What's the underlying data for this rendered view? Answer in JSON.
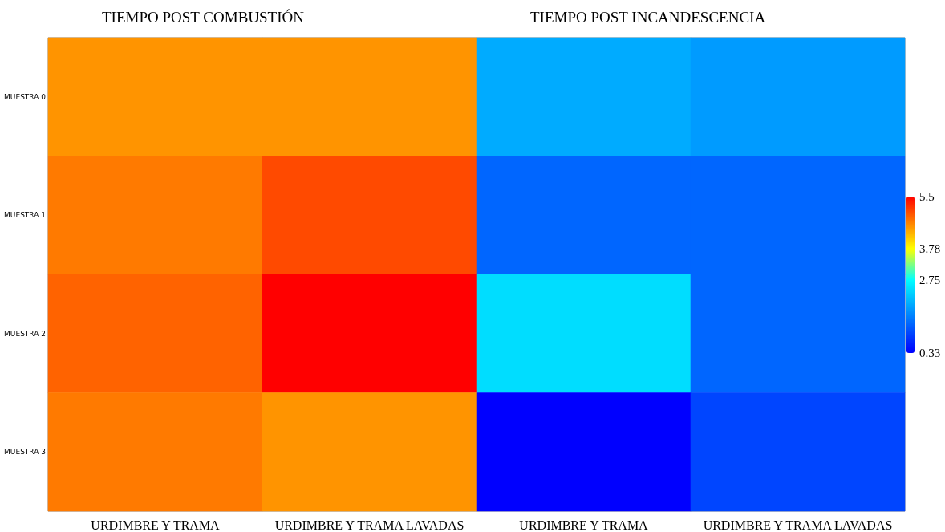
{
  "chart_data": {
    "type": "heatmap",
    "annotations": [
      "TIEMPO POST COMBUSTIÓN",
      "TIEMPO POST INCANDESCENCIA"
    ],
    "categories": [
      "URDIMBRE Y TRAMA",
      "URDIMBRE Y TRAMA LAVADAS",
      "URDIMBRE Y TRAMA",
      "URDIMBRE Y TRAMA LAVADAS"
    ],
    "y_categories": [
      "MUESTRA 0",
      "MUESTRA 1",
      "MUESTRA 2",
      "MUESTRA 3"
    ],
    "cells": [
      [
        4.5,
        4.5,
        1.95,
        1.8
      ],
      [
        4.68,
        5.0,
        1.3,
        1.3
      ],
      [
        4.83,
        5.5,
        2.43,
        1.3
      ],
      [
        4.68,
        4.5,
        0.33,
        0.98
      ]
    ],
    "clim": [
      0.33,
      5.5
    ],
    "cticks": [
      0.33,
      2.75,
      3.78,
      5.5
    ],
    "colors": [
      "#0000ff",
      "#00ffff",
      "#ffff00",
      "#ff0000"
    ]
  }
}
